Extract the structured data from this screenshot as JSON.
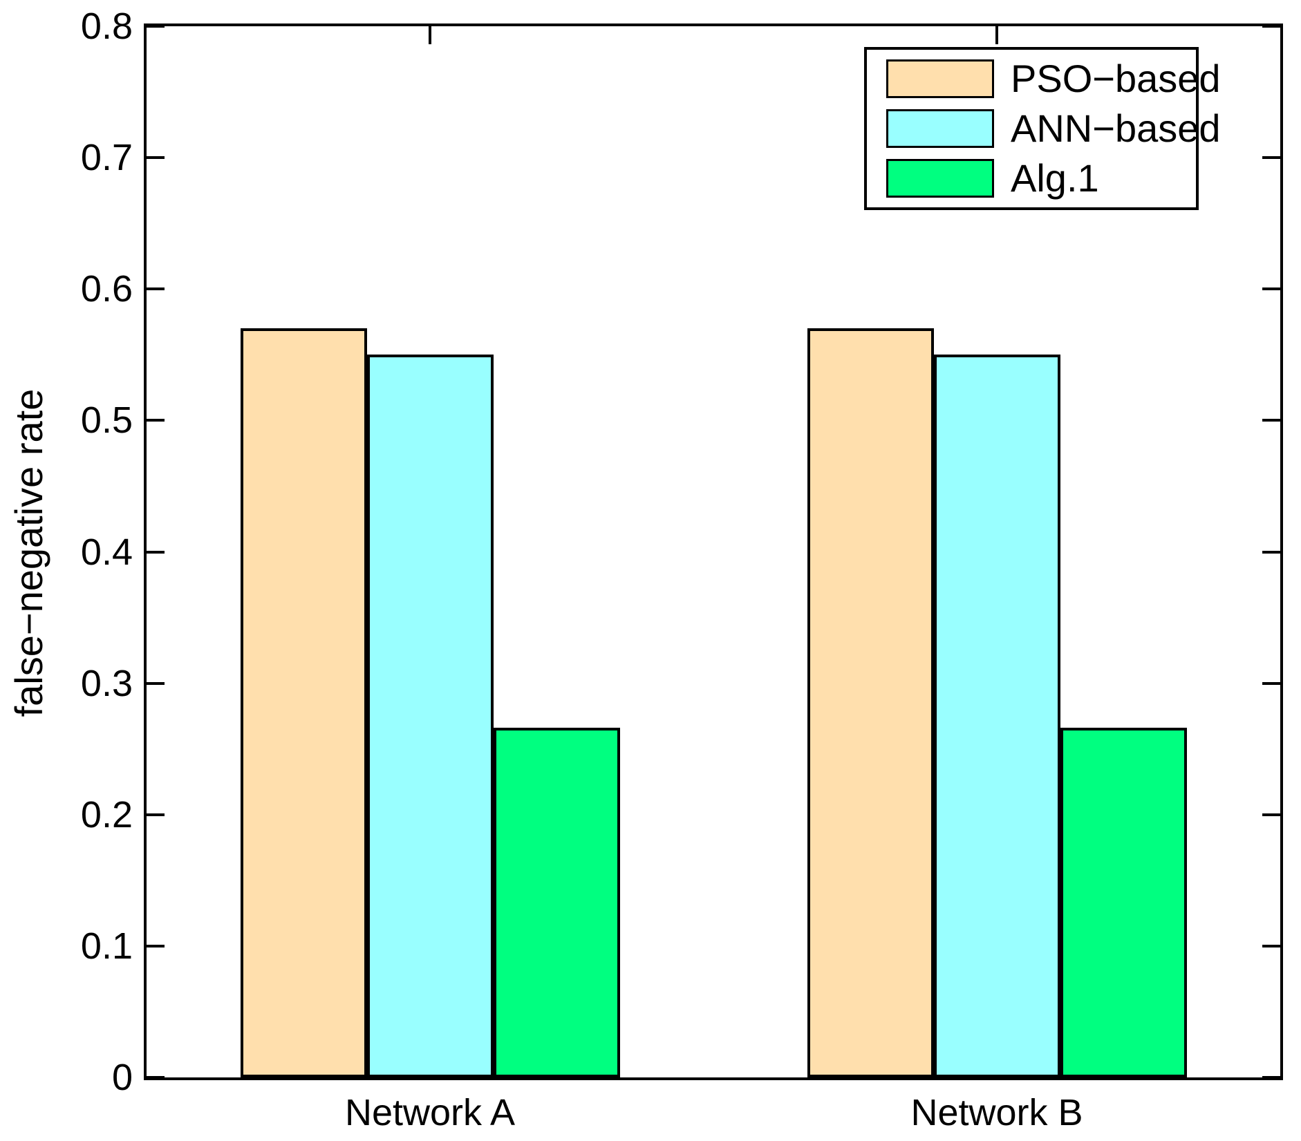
{
  "chart_data": {
    "type": "bar",
    "title": "",
    "xlabel": "",
    "ylabel": "false−negative rate",
    "categories": [
      "Network A",
      "Network B"
    ],
    "series": [
      {
        "name": "PSO−based",
        "color": "#FFDFAD",
        "values": [
          0.57,
          0.57
        ]
      },
      {
        "name": "ANN−based",
        "color": "#99FFFF",
        "values": [
          0.55,
          0.55
        ]
      },
      {
        "name": "Alg.1",
        "color": "#00FF80",
        "values": [
          0.266,
          0.266
        ]
      }
    ],
    "ylim": [
      0,
      0.8
    ],
    "yticks": [
      0,
      0.1,
      0.2,
      0.3,
      0.4,
      0.5,
      0.6,
      0.7,
      0.8
    ],
    "ytick_labels": [
      "0",
      "0.1",
      "0.2",
      "0.3",
      "0.4",
      "0.5",
      "0.6",
      "0.7",
      "0.8"
    ],
    "xlim": [
      0.5,
      2.5
    ],
    "category_positions": [
      1,
      2
    ],
    "bar_width_units": 0.2232,
    "grid": false,
    "legend_position": "top-right",
    "bar_edge_color": "#000000",
    "axis_color": "#000000",
    "background_color": "#FFFFFF"
  }
}
